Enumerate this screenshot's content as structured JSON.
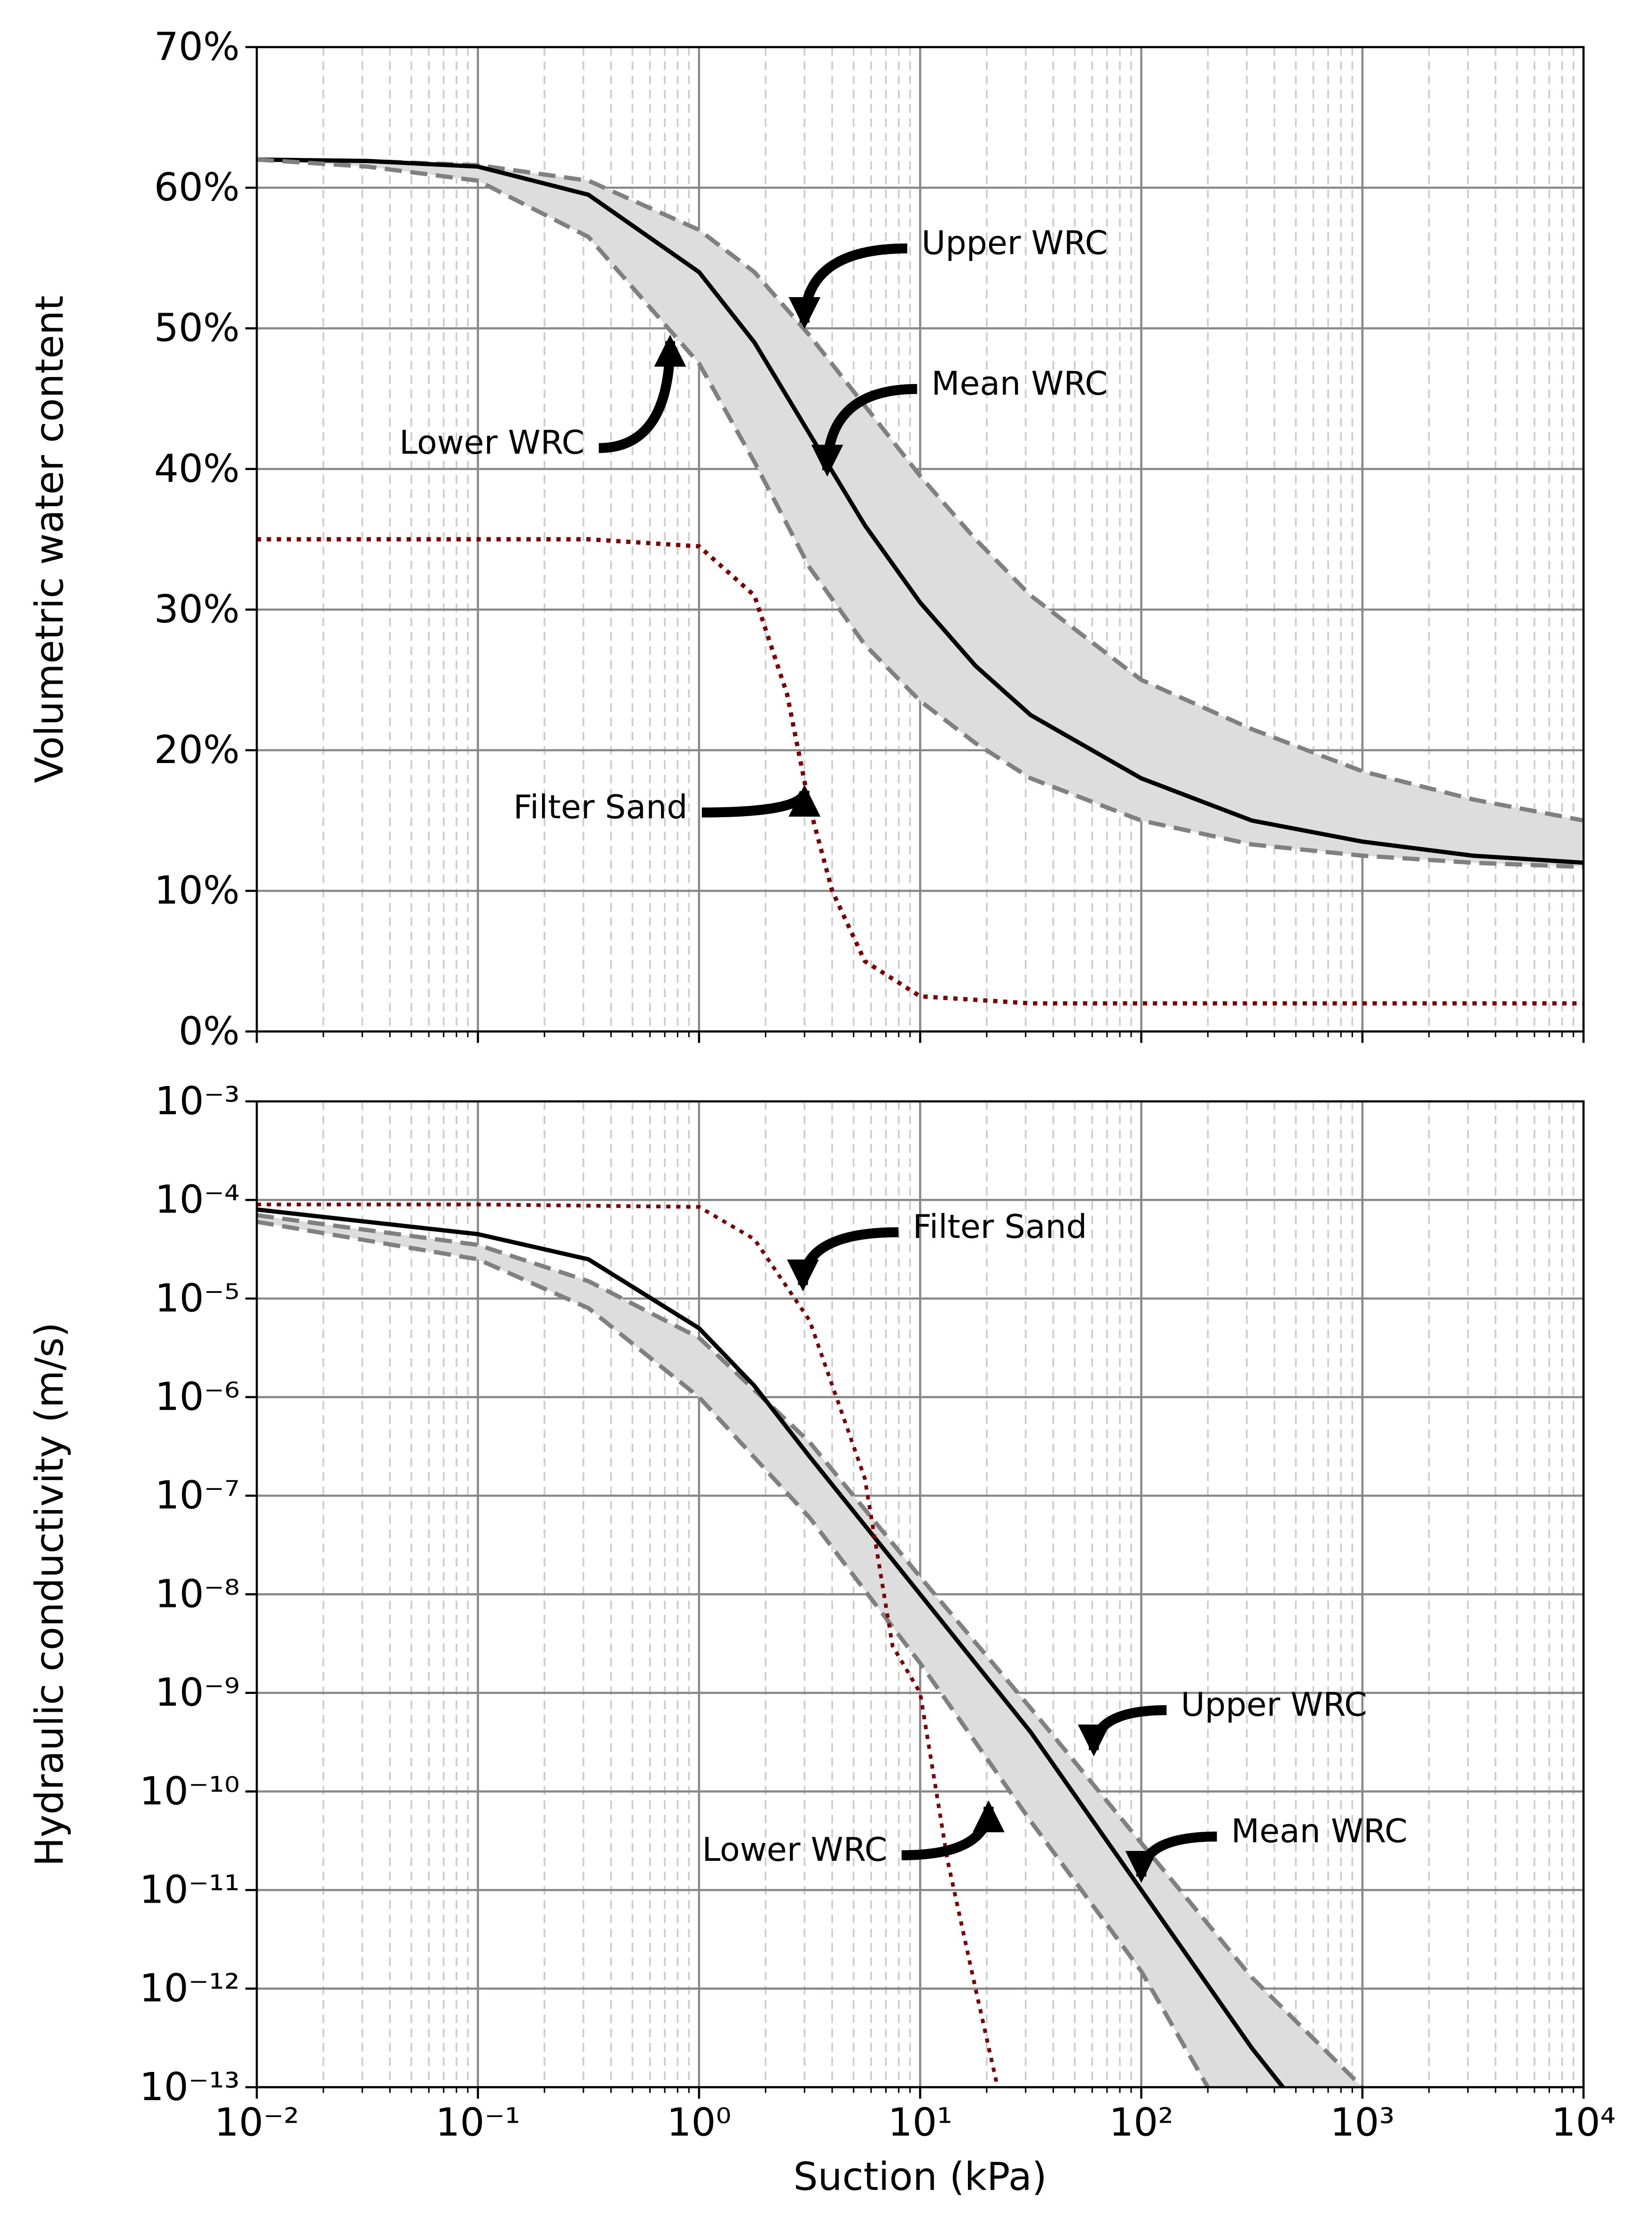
{
  "chart_data": [
    {
      "type": "line",
      "ylabel": "Volumetric water content",
      "xlog": true,
      "ylog": false,
      "xlim": [
        0.01,
        10000
      ],
      "ylim": [
        0,
        70
      ],
      "xticks": [
        0.01,
        0.1,
        1,
        10,
        100,
        1000,
        10000
      ],
      "xtick_labels": false,
      "yticks": [
        {
          "value": 0,
          "label": "0%"
        },
        {
          "value": 10,
          "label": "10%"
        },
        {
          "value": 20,
          "label": "20%"
        },
        {
          "value": 30,
          "label": "30%"
        },
        {
          "value": 40,
          "label": "40%"
        },
        {
          "value": 50,
          "label": "50%"
        },
        {
          "value": 60,
          "label": "60%"
        },
        {
          "value": 70,
          "label": "70%"
        }
      ],
      "grid": true,
      "minor_grid_x": true,
      "fill_between": {
        "series": [
          0,
          2
        ],
        "color": "#dddddd"
      },
      "series": [
        {
          "color": "#808080",
          "style": "dashed",
          "x": [
            0.01,
            0.0316,
            0.1,
            0.316,
            1,
            1.78,
            3.16,
            5.62,
            10,
            17.8,
            31.6,
            100,
            316,
            1000,
            3162,
            10000
          ],
          "values": [
            62,
            61.9,
            61.6,
            60.5,
            57,
            54,
            49.5,
            44.5,
            39.5,
            35,
            31,
            25,
            21.5,
            18.5,
            16.5,
            15
          ]
        },
        {
          "color": "#000000",
          "style": "solid",
          "x": [
            0.01,
            0.0316,
            0.1,
            0.316,
            1,
            1.78,
            3.16,
            5.62,
            10,
            17.8,
            31.6,
            100,
            316,
            1000,
            3162,
            10000
          ],
          "values": [
            62,
            61.9,
            61.5,
            59.5,
            54,
            49,
            42.5,
            36,
            30.5,
            26,
            22.5,
            18,
            15,
            13.5,
            12.5,
            12
          ]
        },
        {
          "color": "#808080",
          "style": "dashed",
          "x": [
            0.01,
            0.0316,
            0.1,
            0.316,
            1,
            1.78,
            3.16,
            5.62,
            10,
            17.8,
            31.6,
            100,
            316,
            1000,
            3162,
            10000
          ],
          "values": [
            62,
            61.5,
            60.5,
            56.5,
            47.5,
            40.5,
            33,
            27.5,
            23.5,
            20.5,
            18,
            15,
            13.3,
            12.5,
            12,
            11.7
          ]
        },
        {
          "color": "#7b0000",
          "style": "dotted",
          "x": [
            0.01,
            0.1,
            0.316,
            1,
            1.78,
            2.5,
            3.16,
            4,
            5.62,
            10,
            31.6,
            100,
            1000,
            10000
          ],
          "values": [
            35,
            35,
            35,
            34.5,
            31,
            24,
            16,
            10,
            5,
            2.5,
            2,
            2,
            2,
            2
          ]
        }
      ],
      "annotations": [
        {
          "text": "Upper WRC",
          "x": 3,
          "y": 50
        },
        {
          "text": "Mean WRC",
          "x": 3.8,
          "y": 39.5
        },
        {
          "text": "Lower WRC",
          "x": 0.74,
          "y": 49.5
        },
        {
          "text": "Filter Sand",
          "x": 3,
          "y": 17.5
        }
      ]
    },
    {
      "type": "line",
      "ylabel": "Hydraulic conductivity (m/s)",
      "xlabel": "Suction (kPa)",
      "xlog": true,
      "ylog": true,
      "xlim": [
        0.01,
        10000
      ],
      "ylim": [
        1e-13,
        0.001
      ],
      "xticks": [
        {
          "value": 0.01,
          "label": "10⁻²"
        },
        {
          "value": 0.1,
          "label": "10⁻¹"
        },
        {
          "value": 1,
          "label": "10⁰"
        },
        {
          "value": 10,
          "label": "10¹"
        },
        {
          "value": 100,
          "label": "10²"
        },
        {
          "value": 1000,
          "label": "10³"
        },
        {
          "value": 10000,
          "label": "10⁴"
        }
      ],
      "yticks": [
        {
          "value": 1e-13,
          "label": "10⁻¹³"
        },
        {
          "value": 1e-12,
          "label": "10⁻¹²"
        },
        {
          "value": 1e-11,
          "label": "10⁻¹¹"
        },
        {
          "value": 1e-10,
          "label": "10⁻¹⁰"
        },
        {
          "value": 1e-09,
          "label": "10⁻⁹"
        },
        {
          "value": 1e-08,
          "label": "10⁻⁸"
        },
        {
          "value": 1e-07,
          "label": "10⁻⁷"
        },
        {
          "value": 1e-06,
          "label": "10⁻⁶"
        },
        {
          "value": 1e-05,
          "label": "10⁻⁵"
        },
        {
          "value": 0.0001,
          "label": "10⁻⁴"
        },
        {
          "value": 0.001,
          "label": "10⁻³"
        }
      ],
      "grid": true,
      "minor_grid_x": true,
      "fill_between": {
        "series": [
          0,
          2
        ],
        "color": "#dddddd"
      },
      "series": [
        {
          "color": "#808080",
          "style": "dashed",
          "x": [
            0.01,
            0.1,
            0.316,
            1,
            3.16,
            10,
            31.6,
            100,
            316,
            1000
          ],
          "values": [
            7e-05,
            3.5e-05,
            1.5e-05,
            4e-06,
            3.5e-07,
            1.5e-08,
            7e-10,
            3e-11,
            1.3e-12,
            1e-13
          ]
        },
        {
          "color": "#000000",
          "style": "solid",
          "x": [
            0.01,
            0.1,
            0.316,
            1,
            1.78,
            3.16,
            10,
            31.6,
            100,
            316,
            437
          ],
          "values": [
            8e-05,
            4.5e-05,
            2.5e-05,
            5e-06,
            1.3e-06,
            2.5e-07,
            1e-08,
            4e-10,
            1e-11,
            2.5e-13,
            1e-13
          ]
        },
        {
          "color": "#808080",
          "style": "dashed",
          "x": [
            0.01,
            0.1,
            0.316,
            1,
            3.16,
            10,
            31.6,
            100,
            200
          ],
          "values": [
            6e-05,
            2.5e-05,
            8e-06,
            1e-06,
            6e-08,
            2e-09,
            5e-11,
            1.5e-12,
            1e-13
          ]
        },
        {
          "color": "#7b0000",
          "style": "dotted",
          "x": [
            0.01,
            0.1,
            1,
            1.78,
            3.16,
            5.62,
            7.5,
            10,
            13.3,
            17.8,
            22.4
          ],
          "values": [
            9e-05,
            9e-05,
            8.5e-05,
            4e-05,
            6e-06,
            1.5e-07,
            3e-09,
            1e-09,
            2e-11,
            1e-12,
            1e-13
          ]
        }
      ],
      "annotations": [
        {
          "text": "Filter Sand",
          "x": 2.95,
          "y": 1.2e-05
        },
        {
          "text": "Upper WRC",
          "x": 61,
          "y": 2.3e-10
        },
        {
          "text": "Mean WRC",
          "x": 100,
          "y": 1.2e-11
        },
        {
          "text": "Lower WRC",
          "x": 20.4,
          "y": 8e-11
        }
      ]
    }
  ]
}
